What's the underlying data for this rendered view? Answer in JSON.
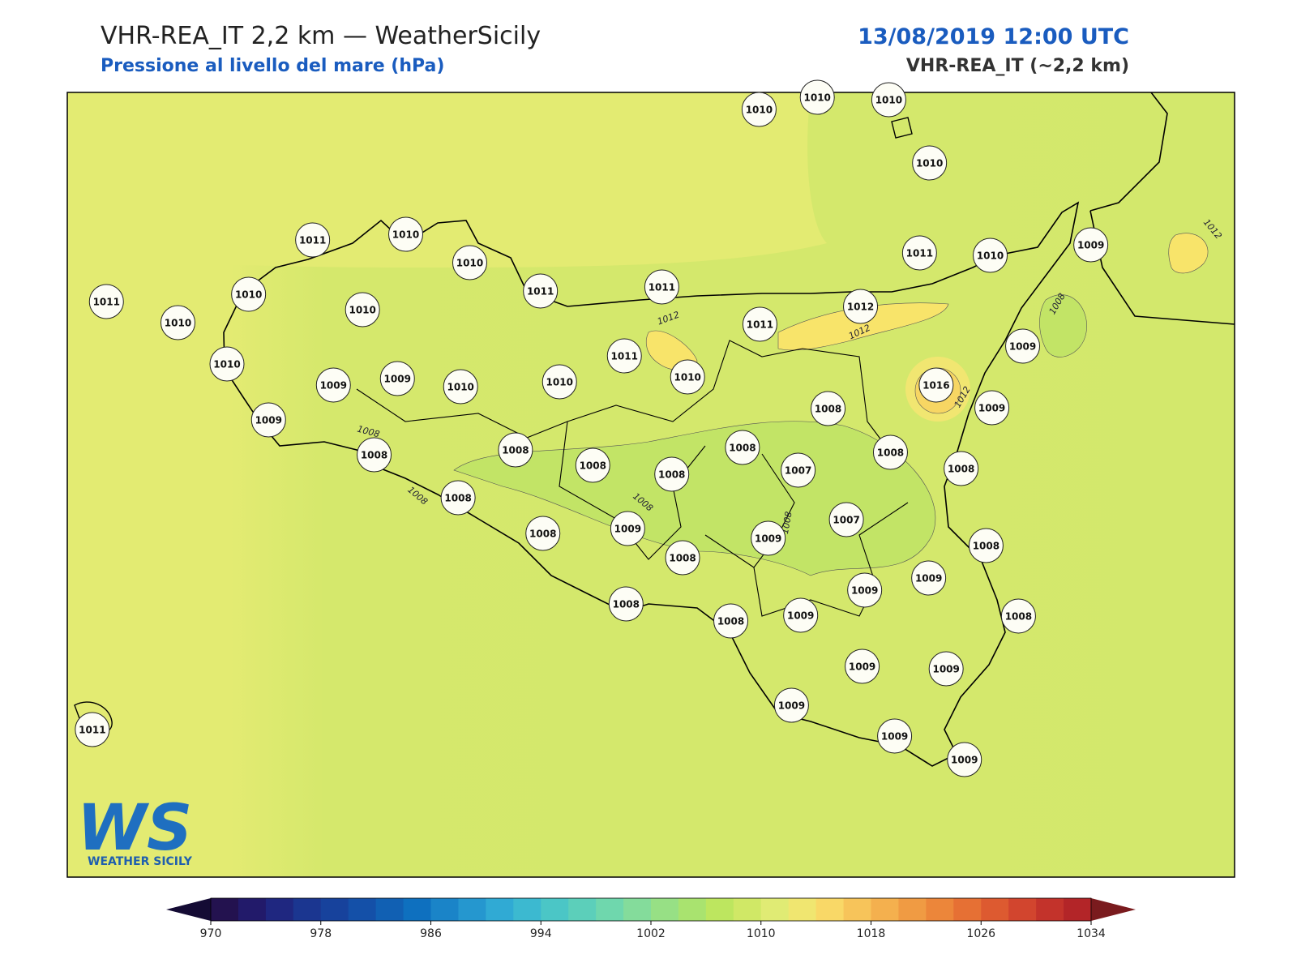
{
  "header": {
    "title": "VHR-REA_IT 2,2 km — WeatherSicily",
    "subtitle": "Pressione al livello del mare (hPa)",
    "datetime": "13/08/2019 12:00 UTC",
    "model": "VHR-REA_IT (~2,2 km)"
  },
  "map": {
    "stations": [
      1010,
      1010,
      1010,
      1010,
      1011,
      1010,
      1010,
      1011,
      1011,
      1011,
      1010,
      1009,
      1011,
      1010,
      1010,
      1010,
      1011,
      1012,
      1011,
      1010,
      1009,
      1009,
      1010,
      1010,
      1010,
      1009,
      1016,
      1009,
      1009,
      1008,
      1008,
      1008,
      1008,
      1008,
      1008,
      1007,
      1008,
      1008,
      1008,
      1008,
      1009,
      1007,
      1009,
      1008,
      1008,
      1009,
      1009,
      1008,
      1008,
      1009,
      1008,
      1009,
      1009,
      1009,
      1009,
      1009,
      1011
    ],
    "contour_labels": [
      1012,
      1012,
      1012,
      1012,
      1008,
      1008,
      1008,
      1008,
      1008
    ]
  },
  "logo": {
    "text": "WS",
    "caption": "WEATHER SICILY"
  },
  "colorbar": {
    "min": 970,
    "max": 1034,
    "ticks": [
      970,
      978,
      986,
      994,
      1002,
      1010,
      1018,
      1026,
      1034
    ],
    "colors": [
      "#23124f",
      "#221a6a",
      "#1f2780",
      "#1b3690",
      "#17429c",
      "#1450a8",
      "#1160b3",
      "#0e70bf",
      "#1a84c8",
      "#2597cf",
      "#30aad4",
      "#3cb9d0",
      "#4bc6c6",
      "#5ccfba",
      "#6fd7ad",
      "#84dc9b",
      "#97e085",
      "#a9e36f",
      "#bde65f",
      "#d0e866",
      "#e0eb74",
      "#f0e670",
      "#f9d867",
      "#f7c45a",
      "#f4b04e",
      "#f09b43",
      "#ec863a",
      "#e67034",
      "#dd5a30",
      "#d2452e",
      "#c3332b",
      "#b32528"
    ],
    "under": "#140b34",
    "over": "#7a1b1e"
  }
}
